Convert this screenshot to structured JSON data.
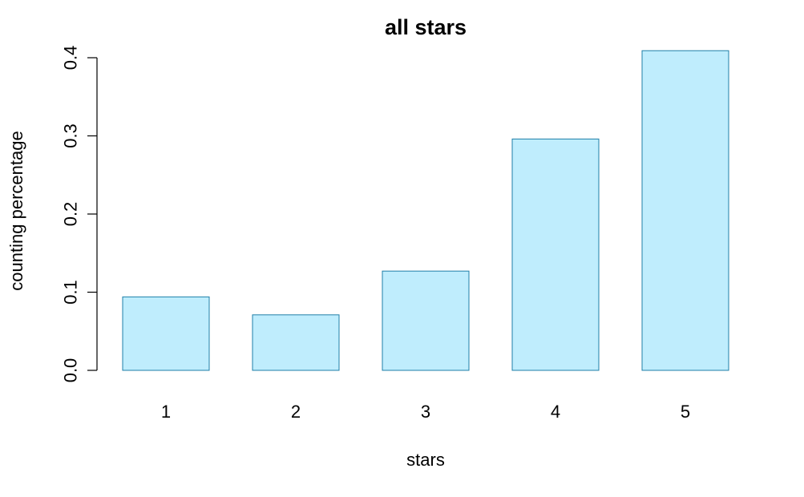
{
  "chart_data": {
    "type": "bar",
    "title": "all stars",
    "xlabel": "stars",
    "ylabel": "counting percentage",
    "categories": [
      "1",
      "2",
      "3",
      "4",
      "5"
    ],
    "values": [
      0.094,
      0.071,
      0.127,
      0.296,
      0.409
    ],
    "ylim": [
      0,
      0.4
    ],
    "yticks": [
      "0.0",
      "0.1",
      "0.2",
      "0.3",
      "0.4"
    ],
    "bar_fill": "#BFEDFD",
    "bar_stroke": "#1F7FA8",
    "grid": false,
    "legend": "none"
  }
}
